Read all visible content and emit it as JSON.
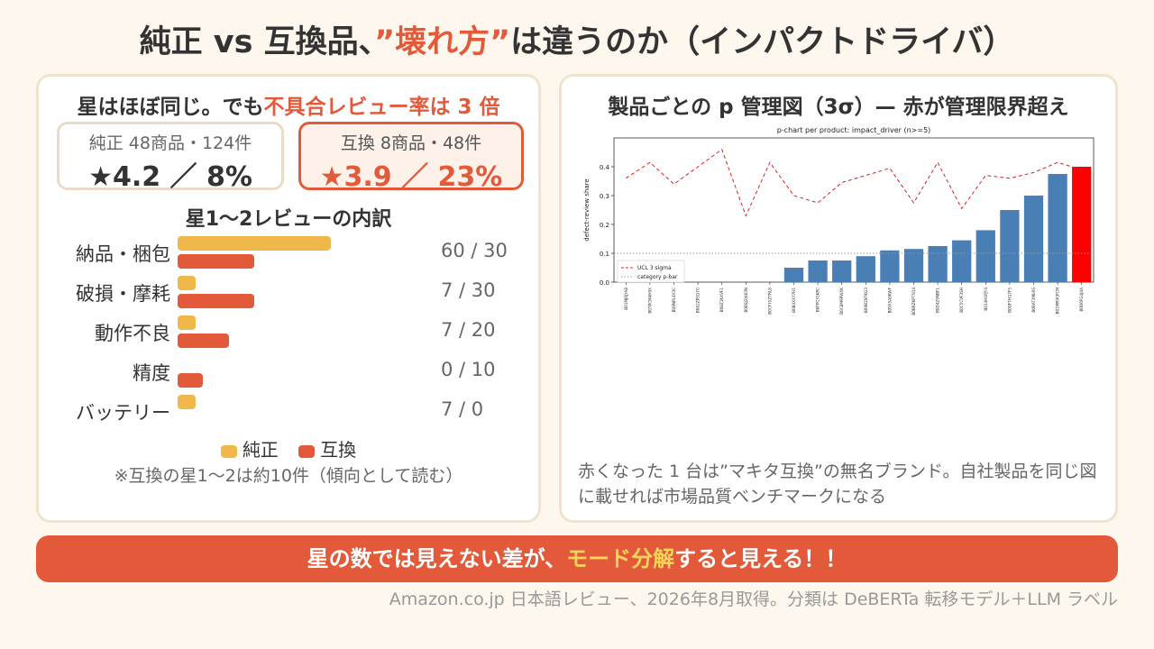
{
  "title": {
    "part1": "純正 vs 互換品、",
    "accent": "”壊れ方”",
    "part2": "は違うのか（インパクトドライバ）"
  },
  "left": {
    "heading_pre": "星はほぼ同じ。でも",
    "heading_red": "不具合レビュー率は 3 倍",
    "genuine": {
      "sub": "純正 48商品・124件",
      "main": "★4.2 ／ 8%"
    },
    "compat": {
      "sub": "互換 8商品・48件",
      "main": "★3.9 ／ 23%"
    },
    "breakdown_title": "星1～2レビューの内訳",
    "breakdown_max": 60,
    "rows": [
      {
        "label": "納品・梱包",
        "genuine": 60,
        "compat": 30,
        "text": "60 / 30"
      },
      {
        "label": "破損・摩耗",
        "genuine": 7,
        "compat": 30,
        "text": "7 / 30"
      },
      {
        "label": "動作不良",
        "genuine": 7,
        "compat": 20,
        "text": "7 / 20"
      },
      {
        "label": "精度",
        "genuine": 0,
        "compat": 10,
        "text": "0 / 10"
      },
      {
        "label": "バッテリー",
        "genuine": 7,
        "compat": 0,
        "text": "7 / 0"
      }
    ],
    "legend": {
      "genuine": "純正",
      "compat": "互換"
    },
    "colors": {
      "genuine": "#f0b84b",
      "compat": "#e25a39"
    },
    "note": "※互換の星1～2は約10件（傾向として読む）"
  },
  "right": {
    "heading": "製品ごとの p 管理図（3σ）— 赤が管理限界超え",
    "caption": "赤くなった 1 台は”マキタ互換”の無名ブランド。自社製品を同じ図に載せれば市場品質ベンチマークになる"
  },
  "chart_data": {
    "type": "bar",
    "title": "p-chart per product: impact_driver (n>=5)",
    "ylabel": "defect-review share",
    "ylim": [
      0,
      0.5
    ],
    "yticks": [
      0.0,
      0.1,
      0.2,
      0.3,
      0.4
    ],
    "categories": [
      "B01MJ6JYA8",
      "B07PCM4H9X",
      "B09NPL4X3C",
      "B082ZPSQ7G",
      "B08Z1KXVF1",
      "B0BSJ2W83N",
      "B0CF7XZTRL8",
      "B0B4XXY7H1",
      "B0FPC31KRC",
      "B0C8M9PWXK",
      "B09B2NTKG3",
      "B09X5A9KWF",
      "B0BRZKPT5Q4",
      "B0D4Z9NBF1",
      "B0C5CVF3SH",
      "B014H1PJY4",
      "B0DFTHQ7F5",
      "B0RAT3MLRS",
      "B01MR9CPCM",
      "B0D6FG4J4A"
    ],
    "series": [
      {
        "name": "",
        "values": [
          0,
          0,
          0,
          0,
          0,
          0,
          0,
          0.05,
          0.075,
          0.075,
          0.09,
          0.11,
          0.115,
          0.125,
          0.145,
          0.18,
          0.25,
          0.3,
          0.375,
          0.4
        ]
      },
      {
        "name": "UCL 3 sigma",
        "values": [
          0.36,
          0.415,
          0.34,
          0.4,
          0.46,
          0.23,
          0.415,
          0.3,
          0.275,
          0.345,
          0.37,
          0.395,
          0.275,
          0.415,
          0.255,
          0.37,
          0.36,
          0.38,
          0.415,
          0.39
        ]
      }
    ],
    "pbar": 0.1,
    "exceed_index": 19,
    "legend": [
      "UCL 3 sigma",
      "category p-bar"
    ],
    "legend_position": "upper-left",
    "colors": {
      "bar": "#4a7fb5",
      "exceed": "#ff0000",
      "ucl": "#e02020",
      "pbar": "#999999"
    }
  },
  "banner": {
    "pre": "星の数では見えない差が、",
    "highlight": "モード分解",
    "post": "すると見える！！"
  },
  "source": "Amazon.co.jp 日本語レビュー、2026年8月取得。分類は DeBERTa 転移モデル＋LLM ラベル"
}
